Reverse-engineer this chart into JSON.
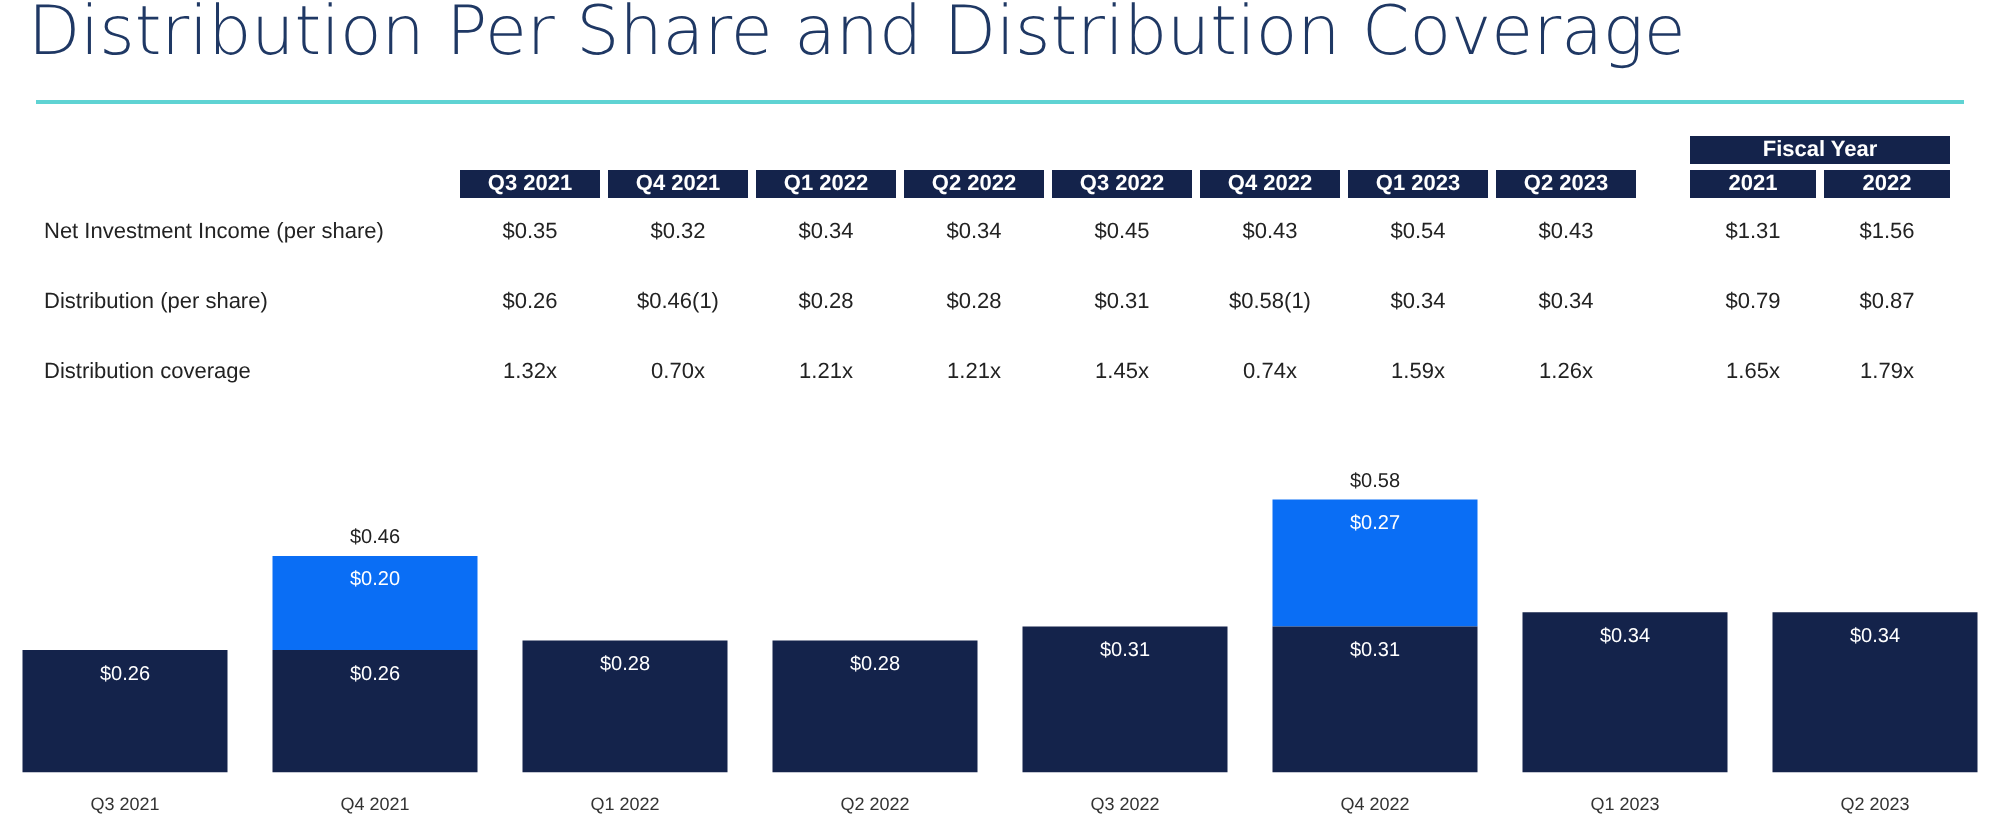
{
  "chart_data": [
    {
      "type": "heatmap",
      "title": "Distribution Per Share and Distribution Coverage",
      "categories": [
        "Q3 2021",
        "Q4 2021",
        "Q1 2022",
        "Q2 2022",
        "Q3 2022",
        "Q4 2022",
        "Q1 2023",
        "Q2 2023",
        "2021",
        "2022"
      ],
      "y_categories": [
        "Net Investment Income (per share)",
        "Distribution (per share)",
        "Distribution coverage"
      ],
      "cells": [
        [
          null,
          null,
          null,
          null,
          null,
          null,
          null,
          null,
          null,
          null
        ],
        [
          null,
          null,
          null,
          null,
          null,
          null,
          null,
          null,
          null,
          null
        ],
        [
          null,
          null,
          null,
          null,
          null,
          null,
          null,
          null,
          null,
          null
        ]
      ],
      "cell_labels": [
        [
          "$0.35",
          "$0.32",
          "$0.34",
          "$0.34",
          "$0.45",
          "$0.43",
          "$0.54",
          "$0.43",
          "$1.31",
          "$1.56"
        ],
        [
          "$0.26",
          "$0.46(1)",
          "$0.28",
          "$0.28",
          "$0.31",
          "$0.58(1)",
          "$0.34",
          "$0.34",
          "$0.79",
          "$0.87"
        ],
        [
          "1.32x",
          "0.70x",
          "1.21x",
          "1.21x",
          "1.45x",
          "0.74x",
          "1.59x",
          "1.26x",
          "1.65x",
          "1.79x"
        ]
      ],
      "annotations": [
        "Fiscal Year"
      ]
    },
    {
      "type": "bar",
      "stacked": true,
      "categories": [
        "Q3 2021",
        "Q4 2021",
        "Q1 2022",
        "Q2 2022",
        "Q3 2022",
        "Q4 2022",
        "Q1 2023",
        "Q2 2023"
      ],
      "series": [
        {
          "color": "#14234b",
          "values": [
            0.26,
            0.26,
            0.28,
            0.28,
            0.31,
            0.31,
            0.34,
            0.34
          ],
          "value_labels": [
            "$0.26",
            "$0.26",
            "$0.28",
            "$0.28",
            "$0.31",
            "$0.31",
            "$0.34",
            "$0.34"
          ]
        },
        {
          "color": "#0a6ef5",
          "values": [
            null,
            0.2,
            null,
            null,
            null,
            0.27,
            null,
            null
          ],
          "value_labels": [
            null,
            "$0.20",
            null,
            null,
            null,
            "$0.27",
            null,
            null
          ]
        }
      ],
      "totals": [
        null,
        "$0.46",
        null,
        null,
        null,
        "$0.58",
        null,
        null
      ],
      "legend": false,
      "grid": false,
      "tick_labels": "x"
    }
  ]
}
